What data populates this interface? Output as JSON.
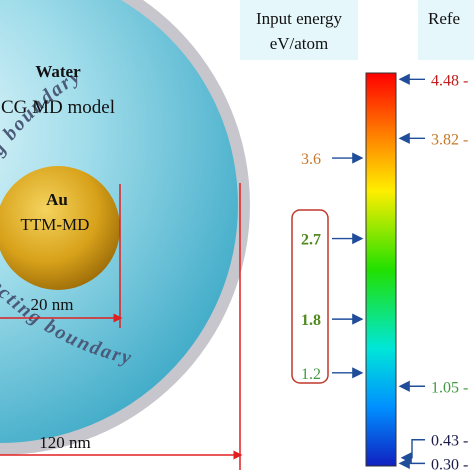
{
  "outer_labels": {
    "top_boundary": "flecting boundary",
    "bottom_boundary": "eflecting boundary"
  },
  "water": {
    "title": "Water",
    "model": "CG MD model",
    "size_label": "120 nm"
  },
  "au": {
    "title": "Au",
    "model": "TTM-MD",
    "size_label": "20 nm"
  },
  "input_energy": {
    "header_line1": "Input energy",
    "header_line2": "eV/atom",
    "values": [
      {
        "label": "3.6",
        "value": 3.6,
        "color": "#c8782a"
      },
      {
        "label": "2.7",
        "value": 2.7,
        "color": "#4f8a1f",
        "bold": true
      },
      {
        "label": "1.8",
        "value": 1.8,
        "color": "#4f8a1f",
        "bold": true
      },
      {
        "label": "1.2",
        "value": 1.2,
        "color": "#3f9a3f"
      }
    ]
  },
  "reflected": {
    "header": "Refe",
    "values": [
      {
        "label": "4.48",
        "value": 4.48,
        "color": "#c01d1d"
      },
      {
        "label": "3.82",
        "value": 3.82,
        "color": "#c8782a"
      },
      {
        "label": "1.05",
        "value": 1.05,
        "color": "#3f9a3f"
      },
      {
        "label": "0.43",
        "value": 0.43,
        "color": "#1a1a4a"
      },
      {
        "label": "0.30",
        "value": 0.3,
        "color": "#1a1a4a"
      }
    ]
  },
  "colors": {
    "water": "#4fbcd6",
    "boundary": "#c6c6cc",
    "gold": "#d8a21a",
    "header_bg": "#e6f7fb",
    "arrow": "#1f4d9a",
    "red_line": "#e02020",
    "box_outline": "#c0392b"
  }
}
